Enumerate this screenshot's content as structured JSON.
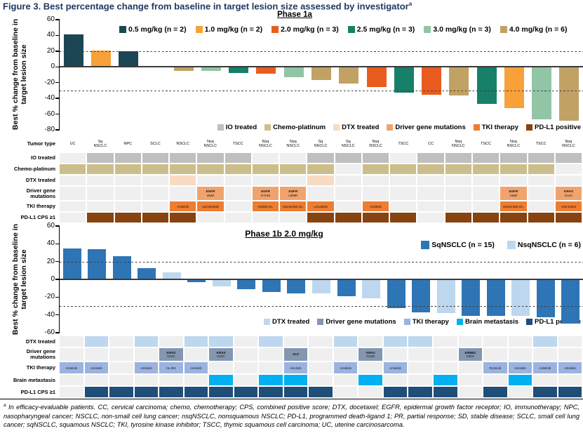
{
  "title": "Figure 3. Best percentage change from baseline in target lesion size assessed by investigator",
  "title_sup": "a",
  "empty_cell_color": "#EFEFEF",
  "chart_data": [
    {
      "type": "bar",
      "title": "Phase 1a",
      "ylabel": "Best % change from baseline in target lesion size",
      "xlabel": "",
      "ylim": [
        -80,
        60
      ],
      "yticks": [
        60,
        40,
        20,
        0,
        -20,
        -40,
        -60,
        -80
      ],
      "reference_lines": [
        20,
        -30
      ],
      "grid": false,
      "legend_position": "top",
      "colors": {
        "0.5": "#1C4654",
        "1.0": "#F7A138",
        "2.0": "#E85C1E",
        "2.5": "#168069",
        "3.0": "#92C4A6",
        "4.0": "#C1A264"
      },
      "legend": [
        {
          "name": "0.5 mg/kg (n = 2)",
          "color": "#1C4654"
        },
        {
          "name": "1.0 mg/kg (n = 2)",
          "color": "#F7A138"
        },
        {
          "name": "2.0 mg/kg (n = 3)",
          "color": "#E85C1E"
        },
        {
          "name": "2.5 mg/kg (n = 3)",
          "color": "#168069"
        },
        {
          "name": "3.0 mg/kg (n = 3)",
          "color": "#92C4A6"
        },
        {
          "name": "4.0 mg/kg (n = 6)",
          "color": "#C1A264"
        }
      ],
      "bars": [
        {
          "value": 41,
          "group": "0.5"
        },
        {
          "value": 21,
          "group": "1.0"
        },
        {
          "value": 20,
          "group": "0.5"
        },
        {
          "value": 0,
          "group": "4.0"
        },
        {
          "value": -5,
          "group": "4.0"
        },
        {
          "value": -5,
          "group": "3.0"
        },
        {
          "value": -8,
          "group": "2.5"
        },
        {
          "value": -9,
          "group": "2.0"
        },
        {
          "value": -13,
          "group": "3.0"
        },
        {
          "value": -17,
          "group": "4.0"
        },
        {
          "value": -21,
          "group": "4.0"
        },
        {
          "value": -26,
          "group": "2.0"
        },
        {
          "value": -33,
          "group": "2.5"
        },
        {
          "value": -35,
          "group": "2.0"
        },
        {
          "value": -36,
          "group": "4.0"
        },
        {
          "value": -47,
          "group": "2.5"
        },
        {
          "value": -52,
          "group": "1.0"
        },
        {
          "value": -67,
          "group": "3.0"
        },
        {
          "value": -68,
          "group": "4.0"
        }
      ]
    },
    {
      "type": "bar",
      "title": "Phase 1b 2.0 mg/kg",
      "ylabel": "Best % change from baseline in target lesion size",
      "xlabel": "",
      "ylim": [
        -60,
        60
      ],
      "yticks": [
        60,
        40,
        20,
        0,
        -20,
        -40,
        -60
      ],
      "reference_lines": [
        20,
        -30
      ],
      "grid": false,
      "legend_position": "top-right",
      "colors": {
        "Sq": "#2E75B6",
        "Nsq": "#BDD7EE"
      },
      "legend": [
        {
          "name": "SqNSCLC (n = 15)",
          "color": "#2E75B6"
        },
        {
          "name": "NsqNSCLC (n = 6)",
          "color": "#BDD7EE"
        }
      ],
      "bars": [
        {
          "value": 35,
          "group": "Sq"
        },
        {
          "value": 34,
          "group": "Sq"
        },
        {
          "value": 26,
          "group": "Sq"
        },
        {
          "value": 13,
          "group": "Sq"
        },
        {
          "value": 8,
          "group": "Nsq"
        },
        {
          "value": -3,
          "group": "Sq"
        },
        {
          "value": -8,
          "group": "Nsq"
        },
        {
          "value": -11,
          "group": "Sq"
        },
        {
          "value": -14,
          "group": "Sq"
        },
        {
          "value": -16,
          "group": "Sq"
        },
        {
          "value": -16,
          "group": "Nsq"
        },
        {
          "value": -19,
          "group": "Sq"
        },
        {
          "value": -21,
          "group": "Nsq"
        },
        {
          "value": -32,
          "group": "Sq"
        },
        {
          "value": -37,
          "group": "Sq"
        },
        {
          "value": -38,
          "group": "Nsq"
        },
        {
          "value": -41,
          "group": "Sq"
        },
        {
          "value": -41,
          "group": "Sq"
        },
        {
          "value": -41,
          "group": "Nsq"
        },
        {
          "value": -43,
          "group": "Sq"
        },
        {
          "value": -50,
          "group": "Sq"
        }
      ]
    }
  ],
  "tables": {
    "phase1a": {
      "legend": [
        {
          "name": "IO treated",
          "color": "#BFBFBF"
        },
        {
          "name": "Chemo-platinum",
          "color": "#CBBE8B"
        },
        {
          "name": "DTX treated",
          "color": "#F8DBC3"
        },
        {
          "name": "Driver gene mutations",
          "color": "#F1A36E"
        },
        {
          "name": "TKI therapy",
          "color": "#ED7D31"
        },
        {
          "name": "PD-L1 positive",
          "color": "#874310"
        }
      ],
      "rows": [
        {
          "label": "Tumor type",
          "kind": "text",
          "cells": [
            "UC",
            "Sq\nNSCLC",
            "NPC",
            "SCLC",
            "NSCLC",
            "Nsq\nNSCLC",
            "TSCC",
            "Nsq\nNSCLC",
            "Nsq\nNSCLC",
            "Sq\nNSCLC",
            "Sq\nNSCLC",
            "Nsq\nNSCLC",
            "TSCC",
            "CC",
            "Nsq\nNSCLC",
            "TSCC",
            "Nsq\nNSCLC",
            "TSCC",
            "Nsq\nNSCLC"
          ]
        },
        {
          "label": "IO treated",
          "kind": "fill",
          "color": "#BFBFBF",
          "cells": [
            0,
            1,
            1,
            1,
            1,
            1,
            1,
            0,
            0,
            1,
            1,
            1,
            0,
            1,
            1,
            1,
            1,
            1,
            1
          ]
        },
        {
          "label": "Chemo-platinum",
          "kind": "fill",
          "color": "#CBBE8B",
          "cells": [
            1,
            1,
            1,
            1,
            1,
            1,
            1,
            1,
            1,
            1,
            0,
            1,
            1,
            1,
            1,
            1,
            1,
            1,
            0
          ]
        },
        {
          "label": "DTX treated",
          "kind": "fill",
          "color": "#F8DBC3",
          "cells": [
            0,
            0,
            0,
            0,
            1,
            0,
            0,
            0,
            0,
            1,
            0,
            0,
            0,
            0,
            0,
            0,
            0,
            0,
            0
          ]
        },
        {
          "label": "Driver gene mutations",
          "kind": "gene",
          "color": "#F1A36E",
          "cells": [
            null,
            null,
            null,
            null,
            null,
            {
              "gene": "EGFR",
              "mutation": "19del"
            },
            null,
            {
              "gene": "EGFR",
              "mutation": "G719X"
            },
            {
              "gene": "EGFR",
              "mutation": "L858R"
            },
            null,
            null,
            null,
            null,
            null,
            null,
            null,
            {
              "gene": "EGFR",
              "mutation": "19del"
            },
            null,
            {
              "gene": "KRAS",
              "mutation": "G12C"
            }
          ]
        },
        {
          "label": "TKI therapy",
          "kind": "drug",
          "color": "#ED7D31",
          "cells": [
            null,
            null,
            null,
            null,
            "Anlotinib",
            "Aumolertinib",
            null,
            "Afatinib etc.",
            "Osimertinib etc.",
            "Lenvatinib",
            null,
            "Anlotinib",
            null,
            null,
            null,
            null,
            "Osimertinib etc.",
            null,
            "JAB-21822"
          ]
        },
        {
          "label": "PD-L1 CPS ≥1",
          "kind": "fill",
          "color": "#874310",
          "cells": [
            0,
            1,
            1,
            1,
            1,
            0,
            0,
            0,
            0,
            1,
            1,
            1,
            1,
            0,
            1,
            1,
            1,
            1,
            1
          ]
        }
      ]
    },
    "phase1b": {
      "legend": [
        {
          "name": "DTX treated",
          "color": "#BDD7EE"
        },
        {
          "name": "Driver gene mutations",
          "color": "#8496B0"
        },
        {
          "name": "TKI therapy",
          "color": "#9CB3DF"
        },
        {
          "name": "Brain metastasis",
          "color": "#00B0F0"
        },
        {
          "name": "PD-L1 positive",
          "color": "#1F4E79"
        }
      ],
      "rows": [
        {
          "label": "DTX treated",
          "kind": "fill",
          "color": "#BDD7EE",
          "cells": [
            0,
            1,
            0,
            1,
            0,
            1,
            1,
            0,
            1,
            0,
            0,
            1,
            0,
            1,
            1,
            0,
            0,
            0,
            0,
            1,
            0
          ]
        },
        {
          "label": "Driver gene mutations",
          "kind": "gene",
          "color": "#8496B0",
          "cells": [
            null,
            null,
            null,
            null,
            {
              "gene": "KRAS",
              "mutation": "G12C"
            },
            null,
            {
              "gene": "KRAS",
              "mutation": "G12C"
            },
            null,
            null,
            {
              "gene": "ALK",
              "mutation": ""
            },
            null,
            null,
            {
              "gene": "KRAS",
              "mutation": "G12D"
            },
            null,
            null,
            null,
            {
              "gene": "ERBB2",
              "mutation": "V842I"
            },
            null,
            null,
            null,
            null
          ]
        },
        {
          "label": "TKI therapy",
          "kind": "drug",
          "color": "#9CB3DF",
          "cells": [
            "Anlotinib",
            "Anlotinib",
            null,
            "Anlotinib",
            "HL-091",
            "Anlotinib",
            null,
            null,
            null,
            "Alectinib",
            null,
            "Anlotinib",
            null,
            "Anlotinib",
            null,
            null,
            null,
            "Pyrotinib",
            "Anlotinib",
            "Anlotinib",
            "Anlotinib"
          ]
        },
        {
          "label": "Brain metastasis",
          "kind": "fill",
          "color": "#00B0F0",
          "cells": [
            0,
            0,
            0,
            0,
            0,
            0,
            1,
            0,
            1,
            1,
            0,
            0,
            1,
            0,
            0,
            1,
            0,
            0,
            1,
            0,
            0
          ]
        },
        {
          "label": "PD-L1 CPS ≥1",
          "kind": "fill",
          "color": "#1F4E79",
          "cells": [
            0,
            1,
            1,
            1,
            1,
            1,
            1,
            1,
            1,
            1,
            1,
            0,
            0,
            1,
            1,
            1,
            0,
            1,
            0,
            1,
            1
          ]
        }
      ]
    }
  },
  "footnote_sup": "a",
  "footnote": " In efficacy-evaluable patients. CC, cervical carcinoma; chemo, chemotherapy; CPS, combined positive score; DTX, docetaxel; EGFR, epidermal growth factor receptor; IO, immunotherapy; NPC, nasopharyngeal cancer; NSCLC, non-small cell lung cancer; nsqNSCLC, nonsquamous NSCLC; PD-L1, programmed death-ligand 1; PR, partial response; SD, stable disease; SCLC, small cell lung cancer; sqNSCLC, squamous NSCLC; TKI, tyrosine kinase inhibitor; TSCC, thymic squamous cell carcinoma; UC, uterine carcinosarcoma."
}
